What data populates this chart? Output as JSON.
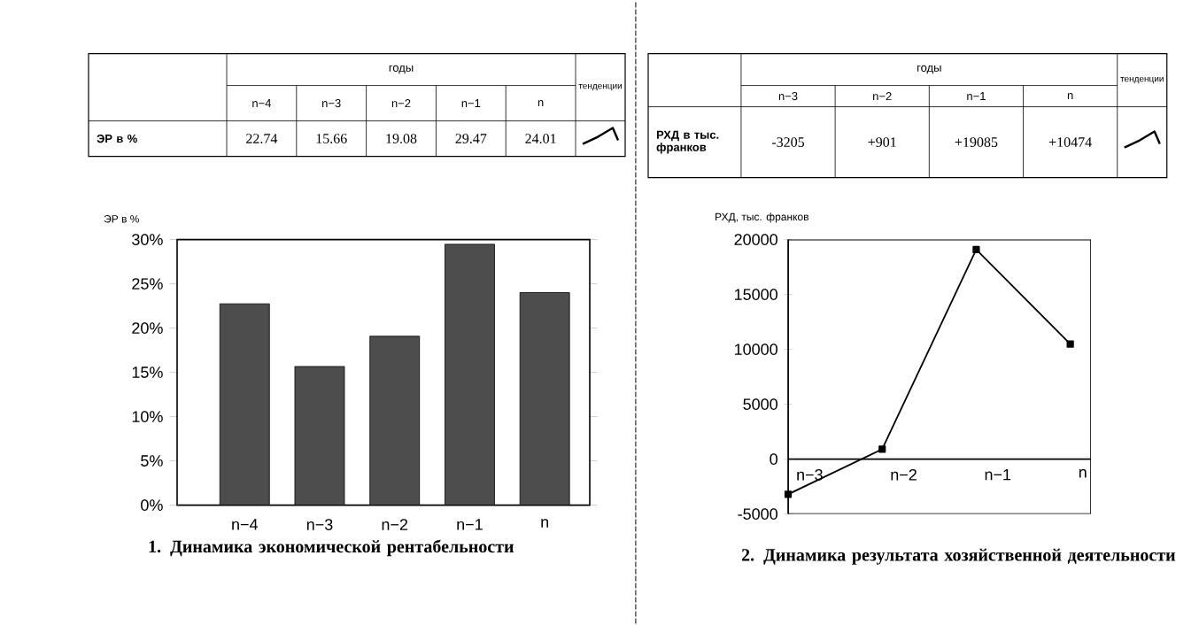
{
  "chart_data": [
    {
      "type": "bar",
      "title": "1. Динамика экономической рентабельности",
      "ylabel": "ЭР в %",
      "categories": [
        "n−4",
        "n−3",
        "n−2",
        "n−1",
        "n"
      ],
      "values": [
        22.74,
        15.66,
        19.08,
        29.47,
        24.01
      ],
      "color": "#4d4d4d",
      "value_labels": [
        "22.74",
        "15.66",
        "19.08",
        "29.47",
        "24.01"
      ],
      "ylim": [
        0,
        30
      ],
      "yticks": [
        {
          "value": 0,
          "label": "0%"
        },
        {
          "value": 5,
          "label": "5%"
        },
        {
          "value": 10,
          "label": "10%"
        },
        {
          "value": 15,
          "label": "15%"
        },
        {
          "value": 20,
          "label": "20%"
        },
        {
          "value": 25,
          "label": "25%"
        },
        {
          "value": 30,
          "label": "30%"
        }
      ],
      "annotations": [
        "годы",
        "тенденции",
        "ЭР в %"
      ]
    },
    {
      "type": "line",
      "title": "2. Динамика результата хозяйственной деятельности",
      "ylabel": "РХД, тыс. франков",
      "categories": [
        "n−3",
        "n−2",
        "n−1",
        "n"
      ],
      "values": [
        -3205,
        901,
        19085,
        10474
      ],
      "color": "#000000",
      "marker": "square",
      "value_labels": [
        "-3205",
        "+901",
        "+19085",
        "+10474"
      ],
      "ylim": [
        -5000,
        20000
      ],
      "yticks": [
        -5000,
        0,
        5000,
        10000,
        15000,
        20000
      ],
      "annotations": [
        "годы",
        "тенденции",
        "РХД в тыс. франков"
      ]
    }
  ]
}
